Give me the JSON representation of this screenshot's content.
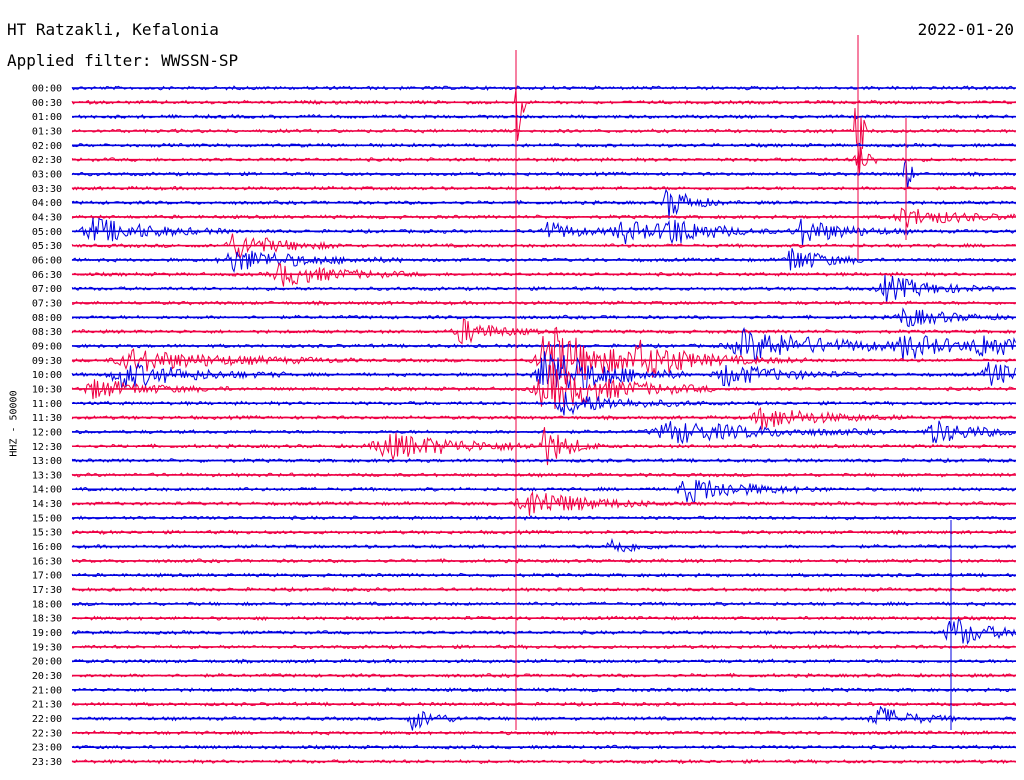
{
  "header": {
    "station": "HT Ratzakli, Kefalonia",
    "filter": "Applied filter: WWSSN-SP",
    "date": "2022-01-20"
  },
  "chart_data": {
    "type": "line",
    "title": "HT Ratzakli, Kefalonia",
    "subtitle": "Applied filter: WWSSN-SP",
    "ylabel": "HHZ - 50000",
    "row_labels": [
      "00:00",
      "00:30",
      "01:00",
      "01:30",
      "02:00",
      "02:30",
      "03:00",
      "03:30",
      "04:00",
      "04:30",
      "05:00",
      "05:30",
      "06:00",
      "06:30",
      "07:00",
      "07:30",
      "08:00",
      "08:30",
      "09:00",
      "09:30",
      "10:00",
      "10:30",
      "11:00",
      "11:30",
      "12:00",
      "12:30",
      "13:00",
      "13:30",
      "14:00",
      "14:30",
      "15:00",
      "15:30",
      "16:00",
      "16:30",
      "17:00",
      "17:30",
      "18:00",
      "18:30",
      "19:00",
      "19:30",
      "20:00",
      "20:30",
      "21:00",
      "21:30",
      "22:00",
      "22:30",
      "23:00",
      "23:30"
    ],
    "trace_colors": [
      "#0000e0",
      "#ee0044"
    ],
    "events": [
      {
        "row": 1,
        "t": 0.47,
        "amp": 80,
        "dur": 0.004
      },
      {
        "row": 3,
        "t": 0.83,
        "amp": 95,
        "dur": 0.004
      },
      {
        "row": 5,
        "t": 0.83,
        "amp": 20,
        "dur": 0.01
      },
      {
        "row": 6,
        "t": 0.88,
        "amp": 55,
        "dur": 0.004
      },
      {
        "row": 8,
        "t": 0.63,
        "amp": 18,
        "dur": 0.02
      },
      {
        "row": 9,
        "t": 0.88,
        "amp": 10,
        "dur": 0.05
      },
      {
        "row": 10,
        "t": 0.02,
        "amp": 14,
        "dur": 0.05
      },
      {
        "row": 10,
        "t": 0.5,
        "amp": 10,
        "dur": 0.03
      },
      {
        "row": 10,
        "t": 0.58,
        "amp": 12,
        "dur": 0.04
      },
      {
        "row": 10,
        "t": 0.63,
        "amp": 12,
        "dur": 0.04
      },
      {
        "row": 10,
        "t": 0.77,
        "amp": 14,
        "dur": 0.04
      },
      {
        "row": 11,
        "t": 0.17,
        "amp": 14,
        "dur": 0.04
      },
      {
        "row": 12,
        "t": 0.17,
        "amp": 12,
        "dur": 0.06
      },
      {
        "row": 12,
        "t": 0.76,
        "amp": 14,
        "dur": 0.03
      },
      {
        "row": 13,
        "t": 0.22,
        "amp": 12,
        "dur": 0.05
      },
      {
        "row": 14,
        "t": 0.86,
        "amp": 14,
        "dur": 0.04
      },
      {
        "row": 16,
        "t": 0.88,
        "amp": 10,
        "dur": 0.04
      },
      {
        "row": 17,
        "t": 0.41,
        "amp": 14,
        "dur": 0.03
      },
      {
        "row": 18,
        "t": 0.71,
        "amp": 16,
        "dur": 0.08
      },
      {
        "row": 18,
        "t": 0.88,
        "amp": 12,
        "dur": 0.04
      },
      {
        "row": 18,
        "t": 0.96,
        "amp": 12,
        "dur": 0.04
      },
      {
        "row": 19,
        "t": 0.06,
        "amp": 12,
        "dur": 0.08
      },
      {
        "row": 19,
        "t": 0.5,
        "amp": 40,
        "dur": 0.05
      },
      {
        "row": 19,
        "t": 0.6,
        "amp": 14,
        "dur": 0.06
      },
      {
        "row": 20,
        "t": 0.05,
        "amp": 14,
        "dur": 0.06
      },
      {
        "row": 20,
        "t": 0.5,
        "amp": 30,
        "dur": 0.05
      },
      {
        "row": 20,
        "t": 0.69,
        "amp": 12,
        "dur": 0.05
      },
      {
        "row": 20,
        "t": 0.97,
        "amp": 14,
        "dur": 0.03
      },
      {
        "row": 21,
        "t": 0.02,
        "amp": 10,
        "dur": 0.05
      },
      {
        "row": 21,
        "t": 0.5,
        "amp": 25,
        "dur": 0.06
      },
      {
        "row": 22,
        "t": 0.52,
        "amp": 12,
        "dur": 0.05
      },
      {
        "row": 23,
        "t": 0.73,
        "amp": 12,
        "dur": 0.05
      },
      {
        "row": 24,
        "t": 0.63,
        "amp": 12,
        "dur": 0.08
      },
      {
        "row": 24,
        "t": 0.91,
        "amp": 12,
        "dur": 0.04
      },
      {
        "row": 25,
        "t": 0.33,
        "amp": 14,
        "dur": 0.07
      },
      {
        "row": 25,
        "t": 0.5,
        "amp": 20,
        "dur": 0.02
      },
      {
        "row": 28,
        "t": 0.65,
        "amp": 14,
        "dur": 0.05
      },
      {
        "row": 29,
        "t": 0.48,
        "amp": 16,
        "dur": 0.05
      },
      {
        "row": 32,
        "t": 0.57,
        "amp": 10,
        "dur": 0.02
      },
      {
        "row": 38,
        "t": 0.93,
        "amp": 18,
        "dur": 0.03
      },
      {
        "row": 44,
        "t": 0.36,
        "amp": 12,
        "dur": 0.02
      },
      {
        "row": 44,
        "t": 0.85,
        "amp": 14,
        "dur": 0.03
      }
    ]
  }
}
